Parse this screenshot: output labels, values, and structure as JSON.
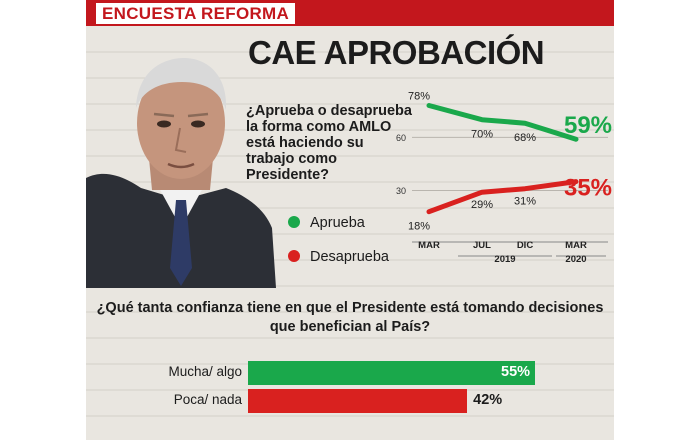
{
  "header": {
    "label": "ENCUESTA REFORMA"
  },
  "headline": "CAE APROBACIÓN",
  "question": "¿Aprueba o desaprueba la forma como AMLO está haciendo su trabajo como Presidente?",
  "legend": [
    {
      "label": "Aprueba",
      "color": "#1aa84b",
      "icon": "green-dot"
    },
    {
      "label": "Desaprueba",
      "color": "#d9211f",
      "icon": "red-dot"
    }
  ],
  "chart_data": [
    {
      "type": "line",
      "categories": [
        "MAR",
        "JUL",
        "DIC",
        "MAR"
      ],
      "year_labels": [
        "2019",
        "2020"
      ],
      "gridline_labels": [
        "60",
        "30"
      ],
      "series": [
        {
          "name": "Aprueba",
          "color": "#1aa84b",
          "values": [
            78,
            70,
            68,
            59
          ],
          "labels": [
            "78%",
            "70%",
            "68%",
            "59%"
          ]
        },
        {
          "name": "Desaprueba",
          "color": "#d9211f",
          "values": [
            18,
            29,
            31,
            35
          ],
          "labels": [
            "18%",
            "29%",
            "31%",
            "35%"
          ]
        }
      ],
      "ylim": [
        15,
        80
      ],
      "grid": true
    },
    {
      "type": "bar",
      "orientation": "horizontal",
      "title": "¿Qué tanta confianza tiene en que el Presidente está tomando decisiones que benefician al País?",
      "categories": [
        "Mucha/ algo",
        "Poca/ nada"
      ],
      "values": [
        55,
        42
      ],
      "value_labels": [
        "55%",
        "42%"
      ],
      "colors": [
        "#1aa84b",
        "#d9211f"
      ],
      "xlim": [
        0,
        100
      ]
    }
  ]
}
